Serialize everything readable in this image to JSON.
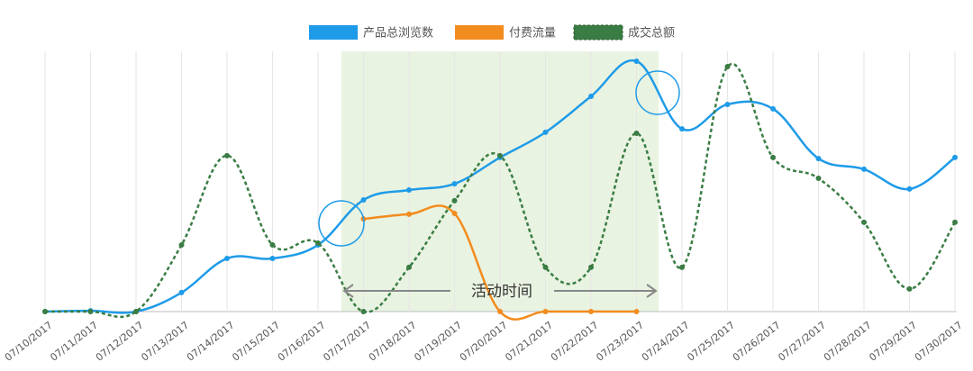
{
  "chart_data": {
    "type": "line",
    "categories": [
      "07/10/2017",
      "07/11/2017",
      "07/12/2017",
      "07/13/2017",
      "07/14/2017",
      "07/15/2017",
      "07/16/2017",
      "07/17/2017",
      "07/18/2017",
      "07/19/2017",
      "07/20/2017",
      "07/21/2017",
      "07/22/2017",
      "07/23/2017",
      "07/24/2017",
      "07/25/2017",
      "07/26/2017",
      "07/27/2017",
      "07/28/2017",
      "07/29/2017",
      "07/30/2017"
    ],
    "series": [
      {
        "name": "产品总浏览数",
        "color": "#1e9be8",
        "dashed": false,
        "values": [
          0,
          0.3,
          0,
          7.3,
          20.4,
          20.4,
          25.6,
          42.9,
          46.7,
          49.1,
          59.2,
          68.9,
          82.7,
          96.2,
          70.2,
          79.6,
          77.9,
          58.8,
          54.7,
          47.1,
          59.2
        ]
      },
      {
        "name": "付费流量",
        "color": "#f28c1e",
        "dashed": false,
        "values": [
          null,
          null,
          null,
          null,
          null,
          null,
          null,
          35.6,
          37.4,
          37.7,
          0,
          0,
          0,
          0,
          null,
          null,
          null,
          null,
          null,
          null,
          null
        ]
      },
      {
        "name": "成交总额",
        "color": "#3a7d44",
        "dashed": true,
        "values": [
          0,
          0,
          0,
          25.6,
          59.9,
          25.6,
          26.3,
          0,
          17,
          42.6,
          59.9,
          17,
          17,
          68.5,
          17,
          94.1,
          59.2,
          51.2,
          34.3,
          8.7,
          34.3
        ]
      }
    ],
    "ylim": [
      0,
      100
    ],
    "annotation": "活动时间",
    "grid": true
  }
}
